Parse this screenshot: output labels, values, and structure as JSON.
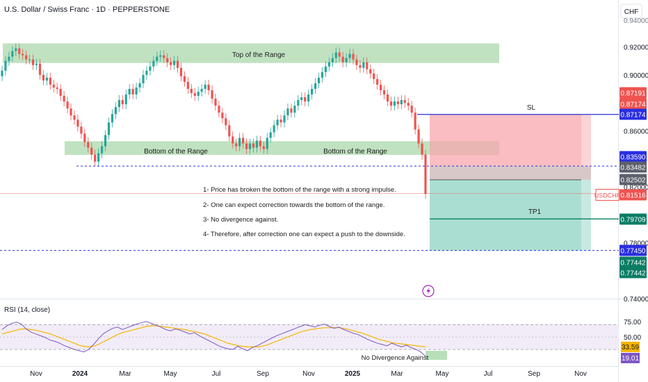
{
  "header": {
    "title": "U.S. Dollar / Swiss Franc · 1D · PEPPERSTONE",
    "currency": "CHF"
  },
  "colors": {
    "up": "#26a69a",
    "down": "#ef5350",
    "range_zone": "#a5d6a7",
    "sl_zone": "#f7a7ad",
    "tp_zone": "#8fd3c3",
    "entry_zone": "#c9b1b1",
    "blue_line": "#2a2ee0",
    "green_line": "#0a7d64",
    "rsi_line": "#7e57c2",
    "rsi_ma": "#f7b500",
    "rsi_band": "#ede7f6"
  },
  "chart_data": [
    {
      "type": "candlestick",
      "title": "U.S. Dollar / Swiss Franc · 1D · PEPPERSTONE",
      "x_axis": {
        "ticks": [
          "Nov",
          "2024",
          "Mar",
          "May",
          "Jul",
          "Sep",
          "Nov",
          "2025",
          "Mar",
          "May",
          "Jul",
          "Sep",
          "Nov"
        ],
        "bold": [
          "2024",
          "2025"
        ]
      },
      "y_axis": {
        "unit": "CHF",
        "ticks": [
          0.92,
          0.9,
          0.86,
          0.78,
          0.74
        ],
        "ticks_text": [
          "0.92000",
          "0.90000",
          "0.86000",
          "0.78000",
          "0.74000"
        ],
        "range": [
          0.72,
          0.945
        ],
        "top_cut_label": "0.94000",
        "partial_label": "0.82000"
      },
      "series": [
        {
          "values": [
            [
              0.899,
              0.903
            ],
            [
              0.903,
              0.91
            ],
            [
              0.91,
              0.913
            ],
            [
              0.913,
              0.917
            ],
            [
              0.917,
              0.919
            ],
            [
              0.919,
              0.915
            ],
            [
              0.915,
              0.914
            ],
            [
              0.914,
              0.911
            ],
            [
              0.911,
              0.911
            ],
            [
              0.911,
              0.907
            ],
            [
              0.907,
              0.908
            ],
            [
              0.908,
              0.9
            ],
            [
              0.9,
              0.896
            ],
            [
              0.896,
              0.898
            ],
            [
              0.898,
              0.893
            ],
            [
              0.893,
              0.891
            ],
            [
              0.891,
              0.89
            ],
            [
              0.89,
              0.885
            ],
            [
              0.885,
              0.881
            ],
            [
              0.881,
              0.876
            ],
            [
              0.876,
              0.871
            ],
            [
              0.871,
              0.868
            ],
            [
              0.868,
              0.863
            ],
            [
              0.863,
              0.858
            ],
            [
              0.858,
              0.852
            ],
            [
              0.852,
              0.848
            ],
            [
              0.848,
              0.843
            ],
            [
              0.843,
              0.838
            ],
            [
              0.838,
              0.844
            ],
            [
              0.844,
              0.849
            ],
            [
              0.849,
              0.857
            ],
            [
              0.857,
              0.866
            ],
            [
              0.866,
              0.872
            ],
            [
              0.872,
              0.877
            ],
            [
              0.877,
              0.882
            ],
            [
              0.882,
              0.879
            ],
            [
              0.879,
              0.886
            ],
            [
              0.886,
              0.89
            ],
            [
              0.89,
              0.886
            ],
            [
              0.886,
              0.891
            ],
            [
              0.891,
              0.894
            ],
            [
              0.894,
              0.9
            ],
            [
              0.9,
              0.903
            ],
            [
              0.903,
              0.906
            ],
            [
              0.906,
              0.91
            ],
            [
              0.91,
              0.913
            ],
            [
              0.913,
              0.914
            ],
            [
              0.914,
              0.912
            ],
            [
              0.912,
              0.909
            ],
            [
              0.909,
              0.907
            ],
            [
              0.907,
              0.91
            ],
            [
              0.91,
              0.905
            ],
            [
              0.905,
              0.899
            ],
            [
              0.899,
              0.895
            ],
            [
              0.895,
              0.89
            ],
            [
              0.89,
              0.887
            ],
            [
              0.887,
              0.885
            ],
            [
              0.885,
              0.888
            ],
            [
              0.888,
              0.89
            ],
            [
              0.89,
              0.893
            ],
            [
              0.893,
              0.889
            ],
            [
              0.889,
              0.883
            ],
            [
              0.883,
              0.878
            ],
            [
              0.878,
              0.873
            ],
            [
              0.873,
              0.869
            ],
            [
              0.869,
              0.864
            ],
            [
              0.864,
              0.856
            ],
            [
              0.856,
              0.851
            ],
            [
              0.851,
              0.849
            ],
            [
              0.849,
              0.855
            ],
            [
              0.855,
              0.851
            ],
            [
              0.851,
              0.847
            ],
            [
              0.847,
              0.851
            ],
            [
              0.851,
              0.848
            ],
            [
              0.848,
              0.853
            ],
            [
              0.853,
              0.849
            ],
            [
              0.849,
              0.847
            ],
            [
              0.847,
              0.855
            ],
            [
              0.855,
              0.859
            ],
            [
              0.859,
              0.864
            ],
            [
              0.864,
              0.868
            ],
            [
              0.868,
              0.866
            ],
            [
              0.866,
              0.871
            ],
            [
              0.871,
              0.876
            ],
            [
              0.876,
              0.873
            ],
            [
              0.873,
              0.878
            ],
            [
              0.878,
              0.882
            ],
            [
              0.882,
              0.884
            ],
            [
              0.884,
              0.881
            ],
            [
              0.881,
              0.886
            ],
            [
              0.886,
              0.89
            ],
            [
              0.89,
              0.894
            ],
            [
              0.894,
              0.898
            ],
            [
              0.898,
              0.902
            ],
            [
              0.902,
              0.906
            ],
            [
              0.906,
              0.909
            ],
            [
              0.909,
              0.912
            ],
            [
              0.912,
              0.916
            ],
            [
              0.916,
              0.913
            ],
            [
              0.913,
              0.909
            ],
            [
              0.909,
              0.912
            ],
            [
              0.912,
              0.915
            ],
            [
              0.915,
              0.911
            ],
            [
              0.911,
              0.907
            ],
            [
              0.907,
              0.905
            ],
            [
              0.905,
              0.909
            ],
            [
              0.909,
              0.904
            ],
            [
              0.904,
              0.901
            ],
            [
              0.901,
              0.897
            ],
            [
              0.897,
              0.893
            ],
            [
              0.893,
              0.889
            ],
            [
              0.889,
              0.886
            ],
            [
              0.886,
              0.881
            ],
            [
              0.881,
              0.878
            ],
            [
              0.878,
              0.881
            ],
            [
              0.881,
              0.879
            ],
            [
              0.879,
              0.882
            ],
            [
              0.882,
              0.88
            ],
            [
              0.88,
              0.878
            ],
            [
              0.878,
              0.873
            ],
            [
              0.873,
              0.861
            ],
            [
              0.861,
              0.851
            ],
            [
              0.851,
              0.843
            ],
            [
              0.843,
              0.815
            ]
          ]
        }
      ],
      "annotations": [
        "Top of the Range",
        "Bottom of the Range",
        "Bottom of the Range",
        "SL",
        "TP1",
        "1- Price has broken the bottom of the range with a strong impulse.",
        "2- One can expect correction towards the bottom of the range.",
        "3- No divergence against.",
        "4- Therefore, after correction one can expect a push to the downside."
      ],
      "price_labels": [
        {
          "value": 0.87191,
          "text": "0.87191",
          "color": "#ef5350"
        },
        {
          "value": 0.87174,
          "text": "0.87174",
          "color": "#ef5350"
        },
        {
          "value": 0.87174,
          "text": "0.87174",
          "color": "#2a2ee0"
        },
        {
          "value": 0.8359,
          "text": "0.83590",
          "color": "#2a2ee0"
        },
        {
          "value": 0.83482,
          "text": "0.83482",
          "color": "#787b86"
        },
        {
          "value": 0.82502,
          "text": "0.82502",
          "color": "#787b86"
        },
        {
          "value": 0.81516,
          "text": "0.81516",
          "color": "#ef5350",
          "tag": "USDCHF"
        },
        {
          "value": 0.79709,
          "text": "0.79709",
          "color": "#0a7d64"
        },
        {
          "value": 0.7745,
          "text": "0.77450",
          "color": "#2a2ee0"
        },
        {
          "value": 0.77442,
          "text": "0.77442",
          "color": "#0a7d64"
        },
        {
          "value": 0.77442,
          "text": "0.77442",
          "color": "#0a7d64"
        }
      ],
      "levels": {
        "sl": 0.87174,
        "entry": 0.83482,
        "mid": 0.82502,
        "tp1": 0.79709,
        "tp_final": 0.7745,
        "range_low_dashed": 0.83482,
        "current": 0.81516
      }
    },
    {
      "type": "line",
      "title": "RSI (14, close)",
      "y_axis": {
        "ticks": [
          75.0,
          50.0
        ],
        "ticks_text": [
          "75.00",
          "50.00"
        ],
        "range": [
          10,
          95
        ]
      },
      "band": [
        30,
        70
      ],
      "series": [
        {
          "name": "RSI",
          "last_value_text": "19.01",
          "values": [
            62,
            68,
            72,
            74,
            71,
            63,
            58,
            55,
            52,
            49,
            45,
            43,
            40,
            36,
            33,
            30,
            28,
            26,
            30,
            38,
            47,
            55,
            60,
            64,
            66,
            62,
            65,
            68,
            71,
            73,
            75,
            72,
            69,
            66,
            62,
            60,
            63,
            61,
            58,
            55,
            57,
            52,
            48,
            44,
            40,
            36,
            33,
            31,
            30,
            35,
            31,
            28,
            33,
            36,
            40,
            44,
            48,
            52,
            55,
            58,
            61,
            64,
            67,
            70,
            68,
            66,
            69,
            71,
            67,
            64,
            66,
            62,
            59,
            56,
            54,
            50,
            46,
            43,
            40,
            38,
            36,
            40,
            37,
            34,
            37,
            33,
            30,
            26,
            19
          ]
        },
        {
          "name": "RSI-MA",
          "last_value_text": "33.59",
          "values": [
            55,
            57,
            59,
            61,
            63,
            63,
            62,
            61,
            59,
            57,
            55,
            52,
            49,
            46,
            43,
            40,
            37,
            35,
            34,
            35,
            38,
            42,
            46,
            50,
            54,
            57,
            59,
            61,
            63,
            65,
            67,
            68,
            68,
            67,
            66,
            65,
            64,
            63,
            62,
            60,
            59,
            57,
            55,
            52,
            49,
            46,
            43,
            40,
            38,
            36,
            35,
            34,
            34,
            34,
            35,
            37,
            40,
            43,
            46,
            49,
            52,
            55,
            58,
            60,
            62,
            63,
            64,
            65,
            65,
            65,
            65,
            64,
            62,
            60,
            58,
            56,
            53,
            50,
            47,
            45,
            43,
            41,
            40,
            39,
            38,
            37,
            36,
            35,
            34
          ]
        }
      ],
      "annotations": [
        "No Divergence Against"
      ]
    }
  ]
}
